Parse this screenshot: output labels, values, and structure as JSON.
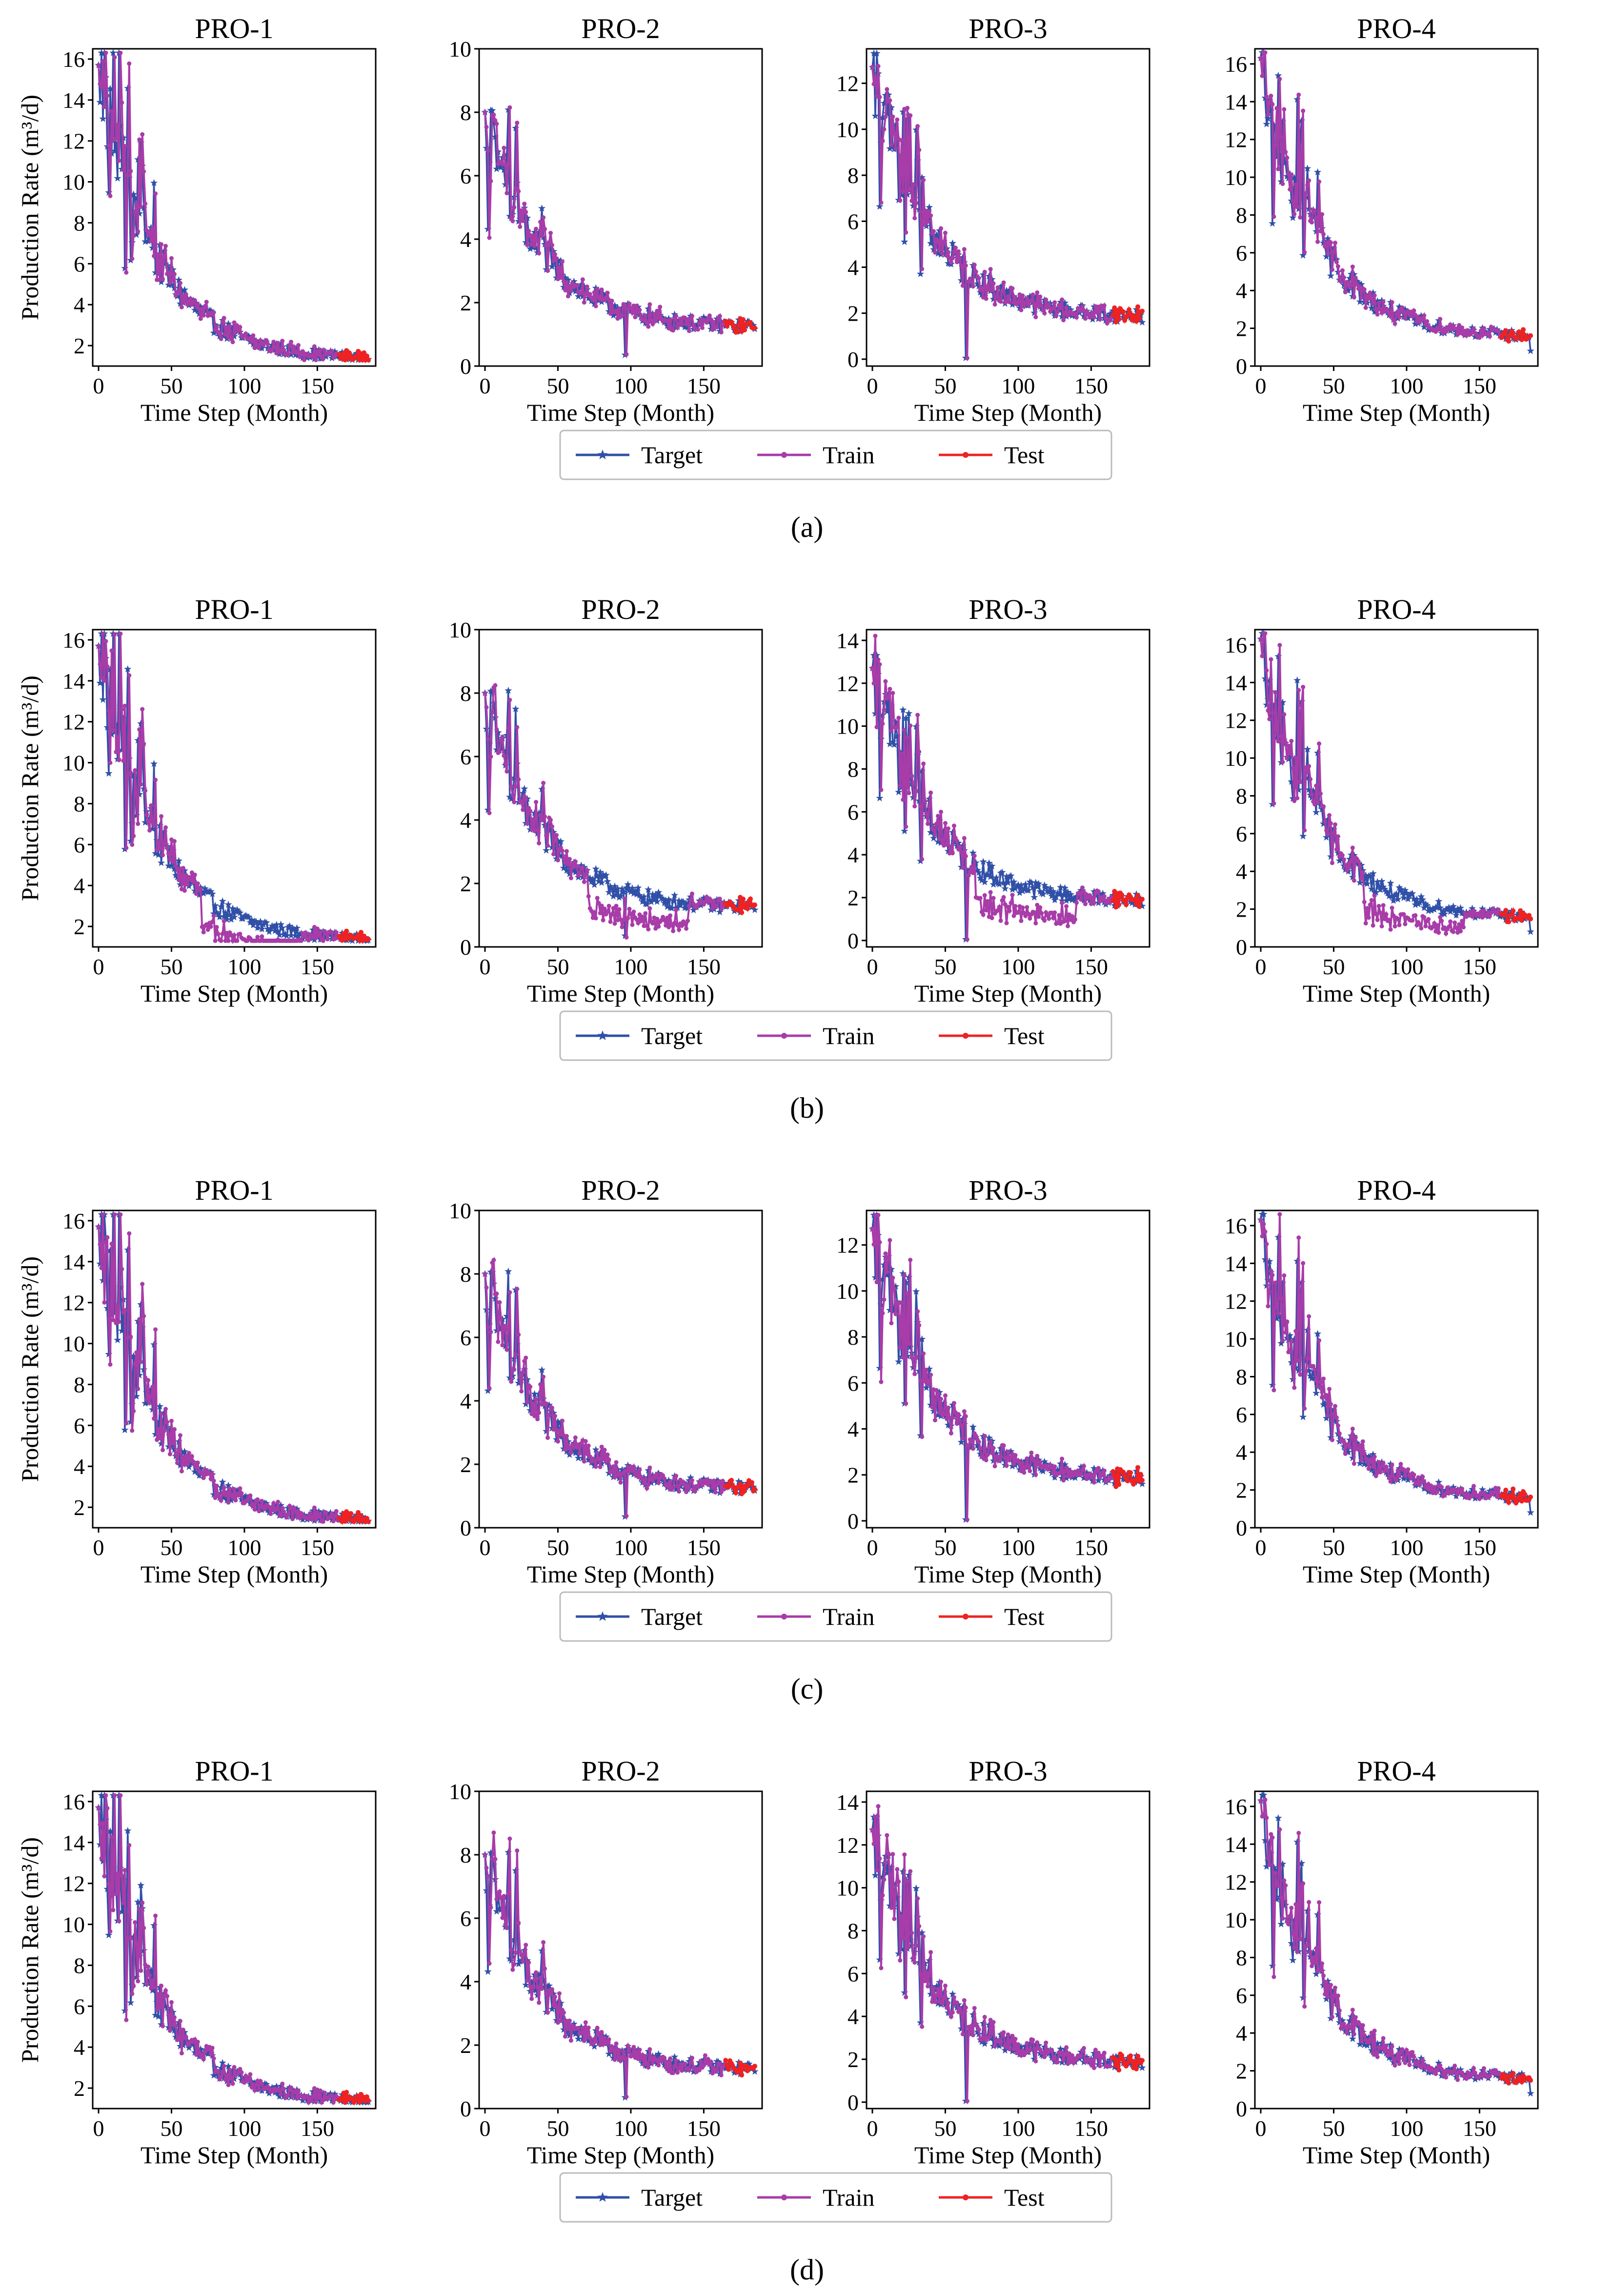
{
  "figure": {
    "colors": {
      "target": "#3050a8",
      "train": "#a83ca8",
      "test": "#ee2222"
    },
    "legend_labels": [
      "Target",
      "Train",
      "Test"
    ],
    "xlabel": "Time Step (Month)",
    "ylabel": "Production Rate (m³/d)",
    "captions": [
      "(a)",
      "(b)",
      "(c)",
      "(d)"
    ]
  },
  "wells": [
    {
      "title": "PRO-1",
      "start": 15.7,
      "end": 1.3,
      "ylim": [
        1,
        16.5
      ],
      "yticks": [
        2,
        4,
        6,
        8,
        10,
        12,
        14,
        16
      ]
    },
    {
      "title": "PRO-2",
      "start": 8.0,
      "end": 1.2,
      "ylim": [
        0,
        10
      ],
      "yticks": [
        0,
        2,
        4,
        6,
        8,
        10
      ]
    },
    {
      "title": "PRO-3",
      "start": 12.7,
      "end": 1.8,
      "ylim": [
        -0.3,
        13.5
      ],
      "yticks": [
        0,
        2,
        4,
        6,
        8,
        10,
        12
      ]
    },
    {
      "title": "PRO-4",
      "start": 16.3,
      "end": 1.5,
      "ylim": [
        0,
        16.8
      ],
      "yticks": [
        0,
        2,
        4,
        6,
        8,
        10,
        12,
        14,
        16
      ]
    }
  ],
  "chart_data": {
    "type": "line",
    "x_range": [
      0,
      186
    ],
    "x_ticks": [
      0,
      50,
      100,
      150
    ],
    "train_end": 165,
    "rows": [
      {
        "caption": "(a)",
        "panels": [
          {
            "title": "PRO-1",
            "ylim": [
              1,
              16.5
            ],
            "yticks": [
              2,
              4,
              6,
              8,
              10,
              12,
              14,
              16
            ]
          },
          {
            "title": "PRO-2",
            "ylim": [
              0,
              10
            ],
            "yticks": [
              0,
              2,
              4,
              6,
              8,
              10
            ]
          },
          {
            "title": "PRO-3",
            "ylim": [
              -0.3,
              13.5
            ],
            "yticks": [
              0,
              2,
              4,
              6,
              8,
              10,
              12
            ]
          },
          {
            "title": "PRO-4",
            "ylim": [
              0,
              16.8
            ],
            "yticks": [
              0,
              2,
              4,
              6,
              8,
              10,
              12,
              14,
              16
            ]
          }
        ]
      },
      {
        "caption": "(b)",
        "panels": [
          {
            "title": "PRO-1",
            "ylim": [
              1,
              16.5
            ],
            "yticks": [
              2,
              4,
              6,
              8,
              10,
              12,
              14,
              16
            ]
          },
          {
            "title": "PRO-2",
            "ylim": [
              0,
              10
            ],
            "yticks": [
              0,
              2,
              4,
              6,
              8,
              10
            ]
          },
          {
            "title": "PRO-3",
            "ylim": [
              -0.3,
              14.5
            ],
            "yticks": [
              0,
              2,
              4,
              6,
              8,
              10,
              12,
              14
            ]
          },
          {
            "title": "PRO-4",
            "ylim": [
              0,
              16.8
            ],
            "yticks": [
              0,
              2,
              4,
              6,
              8,
              10,
              12,
              14,
              16
            ]
          }
        ]
      },
      {
        "caption": "(c)",
        "panels": [
          {
            "title": "PRO-1",
            "ylim": [
              1,
              16.5
            ],
            "yticks": [
              2,
              4,
              6,
              8,
              10,
              12,
              14,
              16
            ]
          },
          {
            "title": "PRO-2",
            "ylim": [
              0,
              10
            ],
            "yticks": [
              0,
              2,
              4,
              6,
              8,
              10
            ]
          },
          {
            "title": "PRO-3",
            "ylim": [
              -0.3,
              13.5
            ],
            "yticks": [
              0,
              2,
              4,
              6,
              8,
              10,
              12
            ]
          },
          {
            "title": "PRO-4",
            "ylim": [
              0,
              16.8
            ],
            "yticks": [
              0,
              2,
              4,
              6,
              8,
              10,
              12,
              14,
              16
            ]
          }
        ]
      },
      {
        "caption": "(d)",
        "panels": [
          {
            "title": "PRO-1",
            "ylim": [
              1,
              16.5
            ],
            "yticks": [
              2,
              4,
              6,
              8,
              10,
              12,
              14,
              16
            ]
          },
          {
            "title": "PRO-2",
            "ylim": [
              0,
              10
            ],
            "yticks": [
              0,
              2,
              4,
              6,
              8,
              10
            ]
          },
          {
            "title": "PRO-3",
            "ylim": [
              -0.3,
              14.5
            ],
            "yticks": [
              0,
              2,
              4,
              6,
              8,
              10,
              12,
              14
            ]
          },
          {
            "title": "PRO-4",
            "ylim": [
              0,
              16.8
            ],
            "yticks": [
              0,
              2,
              4,
              6,
              8,
              10,
              12,
              14,
              16
            ]
          }
        ]
      }
    ],
    "series": [
      {
        "name": "Target",
        "x_range": [
          0,
          186
        ],
        "shape": "decline with monthly noise"
      },
      {
        "name": "Train",
        "x_range": [
          0,
          165
        ]
      },
      {
        "name": "Test",
        "x_range": [
          165,
          186
        ]
      }
    ]
  }
}
